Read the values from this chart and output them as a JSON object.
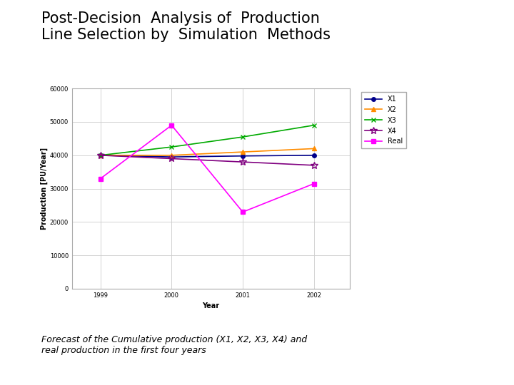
{
  "title": "Post-Decision  Analysis of  Production\nLine Selection by  Simulation  Methods",
  "subtitle": "Forecast of the Cumulative production (X1, X2, X3, X4) and\nreal production in the first four years",
  "xlabel": "Year",
  "ylabel": "Production [PU/Year]",
  "years": [
    1999,
    2000,
    2001,
    2002
  ],
  "series": {
    "X1": {
      "values": [
        40000,
        39500,
        39800,
        40000
      ],
      "color": "#00008B",
      "marker": "o",
      "linestyle": "-"
    },
    "X2": {
      "values": [
        40000,
        40000,
        41000,
        42000
      ],
      "color": "#FF8C00",
      "marker": "^",
      "linestyle": "-"
    },
    "X3": {
      "values": [
        40000,
        42500,
        45500,
        49000
      ],
      "color": "#00AA00",
      "marker": "x",
      "linestyle": "-"
    },
    "X4": {
      "values": [
        40000,
        39000,
        38000,
        37000
      ],
      "color": "#800080",
      "marker": "*",
      "linestyle": "-"
    },
    "Real": {
      "values": [
        33000,
        49000,
        23000,
        31500
      ],
      "color": "#FF00FF",
      "marker": "s",
      "linestyle": "-"
    }
  },
  "ylim": [
    0,
    60000
  ],
  "yticks": [
    0,
    10000,
    20000,
    30000,
    40000,
    50000,
    60000
  ],
  "background_color": "#ffffff",
  "plot_bg_color": "#ffffff",
  "grid_color": "#cccccc",
  "title_fontsize": 15,
  "subtitle_fontsize": 9,
  "axis_label_fontsize": 7,
  "tick_fontsize": 6,
  "legend_fontsize": 7
}
